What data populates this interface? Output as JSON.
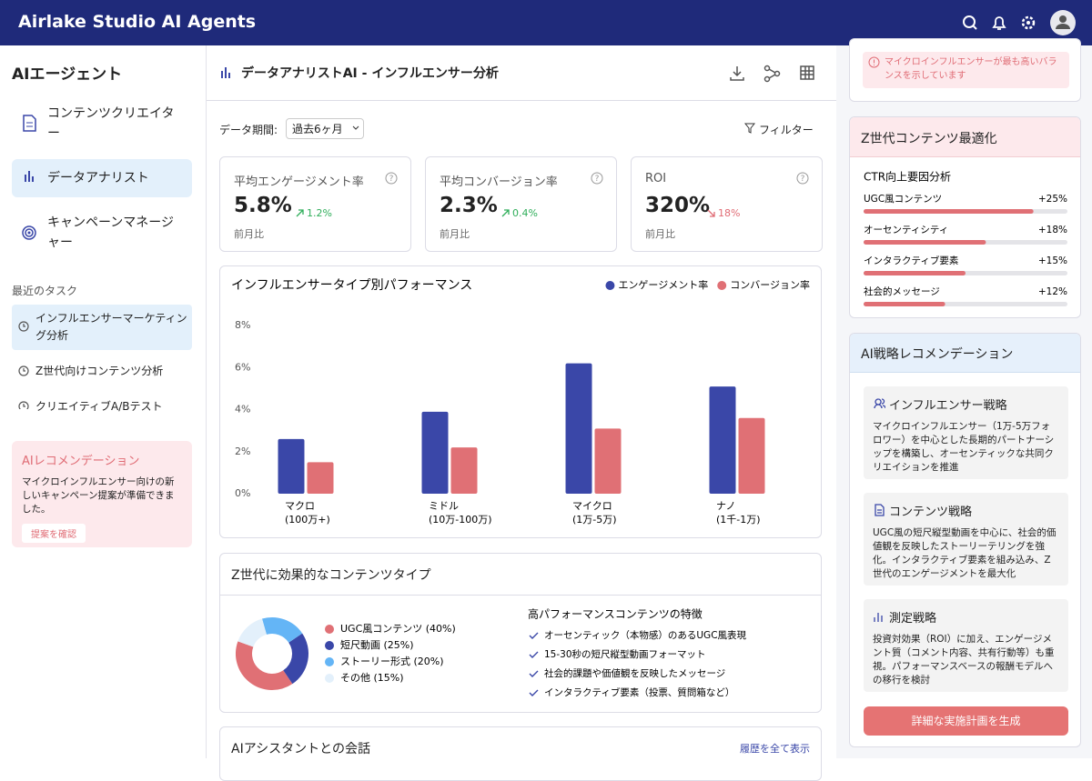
{
  "header": {
    "title": "Airlake Studio AI Agents"
  },
  "sidebar": {
    "title": "AIエージェント",
    "agents": [
      "コンテンツクリエイター",
      "データアナリスト",
      "キャンペーンマネージャー"
    ],
    "recent_title": "最近のタスク",
    "tasks": [
      "インフルエンサーマーケティング分析",
      "Z世代向けコンテンツ分析",
      "クリエイティブA/Bテスト"
    ],
    "recommend": {
      "title": "AIレコメンデーション",
      "text": "マイクロインフルエンサー向けの新しいキャンペーン提案が準備できました。",
      "button": "提案を確認"
    }
  },
  "main": {
    "title": "データアナリストAI - インフルエンサー分析",
    "period_label": "データ期間:",
    "period": "過去6ヶ月",
    "filter": "フィルター",
    "kpis": [
      {
        "label": "平均エンゲージメント率",
        "value": "5.8%",
        "change": "1.2%",
        "note": "前月比"
      },
      {
        "label": "平均コンバージョン率",
        "value": "2.3%",
        "change": "0.4%",
        "note": "前月比"
      },
      {
        "label": "ROI",
        "value": "320%",
        "change": "18%",
        "note": "前月比"
      }
    ],
    "performance_chart": {
      "type": "bar",
      "title": "インフルエンサータイプ別パフォーマンス",
      "categories": [
        "マクロ",
        "ミドル",
        "マイクロ",
        "ナノ"
      ],
      "category_notes": [
        "(100万+)",
        "(10万-100万)",
        "(1万-5万)",
        "(1千-1万)"
      ],
      "series": [
        {
          "name": "エンゲージメント率",
          "color": "#3a47a8",
          "values": [
            2.6,
            3.9,
            6.2,
            5.1
          ]
        },
        {
          "name": "コンバージョン率",
          "color": "#e07075",
          "values": [
            1.5,
            2.2,
            3.1,
            3.6
          ]
        }
      ],
      "ylim": [
        0,
        8
      ],
      "yticks": [
        {
          "value": 0,
          "label": "0%"
        },
        {
          "value": 2,
          "label": "2%"
        },
        {
          "value": 4,
          "label": "4%"
        },
        {
          "value": 6,
          "label": "6%"
        },
        {
          "value": 8,
          "label": "8%"
        }
      ],
      "legend": "top-right"
    },
    "content_types": {
      "type": "pie",
      "title": "Z世代に効果的なコンテンツタイプ",
      "segments": [
        {
          "label": "UGC風コンテンツ (40%)",
          "value": 40,
          "color": "#e07075"
        },
        {
          "label": "短尺動画 (25%)",
          "value": 25,
          "color": "#3a47a8"
        },
        {
          "label": "ストーリー形式 (20%)",
          "value": 20,
          "color": "#64b5f6"
        },
        {
          "label": "その他 (15%)",
          "value": 15,
          "color": "#e3f0fb"
        }
      ],
      "features_title": "高パフォーマンスコンテンツの特徴",
      "features": [
        "オーセンティック（本物感）のあるUGC風表現",
        "15-30秒の短尺縦型動画フォーマット",
        "社会的課題や価値観を反映したメッセージ",
        "インタラクティブ要素（投票、質問箱など）"
      ]
    },
    "chat": {
      "title": "AIアシスタントとの会話",
      "link": "履歴を全て表示"
    }
  },
  "right": {
    "alert": "マイクロインフルエンサーが最も高いバランスを示しています",
    "genz": {
      "title": "Z世代コンテンツ最適化",
      "subtitle": "CTR向上要因分析",
      "xlim": [
        0,
        30
      ],
      "color": "#e07075",
      "factors": [
        {
          "name": "UGC風コンテンツ",
          "value": 25,
          "label": "+25%"
        },
        {
          "name": "オーセンティシティ",
          "value": 18,
          "label": "+18%"
        },
        {
          "name": "インタラクティブ要素",
          "value": 15,
          "label": "+15%"
        },
        {
          "name": "社会的メッセージ",
          "value": 12,
          "label": "+12%"
        }
      ]
    },
    "strategy": {
      "title": "AI戦略レコメンデーション",
      "items": [
        {
          "title": "インフルエンサー戦略",
          "text": "マイクロインフルエンサー（1万-5万フォロワー）を中心とした長期的パートナーシップを構築し、オーセンティックな共同クリエイションを推進"
        },
        {
          "title": "コンテンツ戦略",
          "text": "UGC風の短尺縦型動画を中心に、社会的価値観を反映したストーリーテリングを強化。インタラクティブ要素を組み込み、Z世代のエンゲージメントを最大化"
        },
        {
          "title": "測定戦略",
          "text": "投資対効果（ROI）に加え、エンゲージメント質（コメント内容、共有行動等）も重視。パフォーマンスベースの報酬モデルへの移行を検討"
        }
      ],
      "button": "詳細な実施計画を生成"
    }
  }
}
